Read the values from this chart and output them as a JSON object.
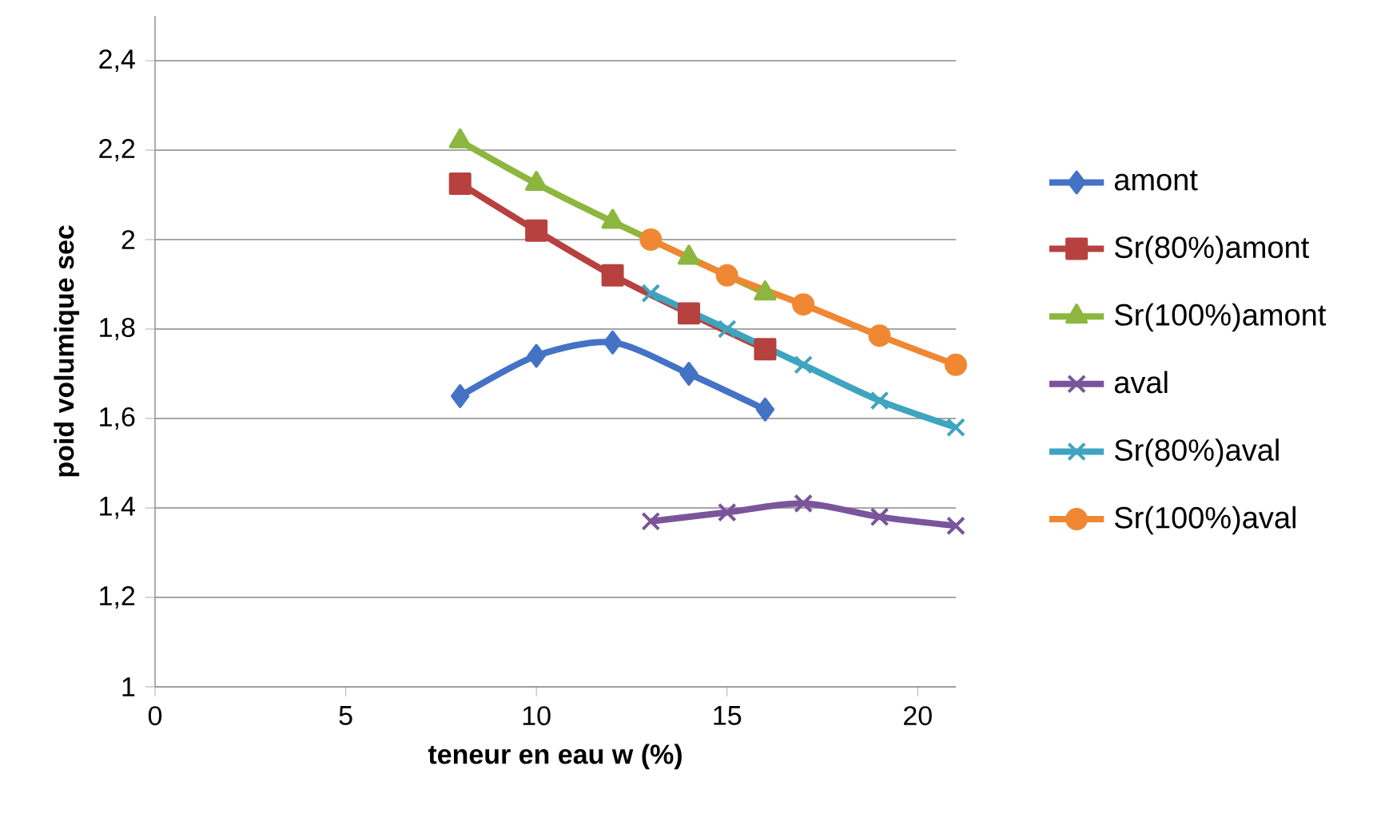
{
  "chart_data": {
    "type": "line",
    "xlabel": "teneur en eau w (%)",
    "ylabel": "poid volumique sec",
    "xlim": [
      0,
      21
    ],
    "xticks": [
      0,
      5,
      10,
      15,
      20
    ],
    "ylim": [
      1,
      2.5
    ],
    "yticks": [
      {
        "value": 1,
        "label": "1"
      },
      {
        "value": 1.2,
        "label": "1,2"
      },
      {
        "value": 1.4,
        "label": "1,4"
      },
      {
        "value": 1.6,
        "label": "1,6"
      },
      {
        "value": 1.8,
        "label": "1,8"
      },
      {
        "value": 2,
        "label": "2"
      },
      {
        "value": 2.2,
        "label": "2,2"
      },
      {
        "value": 2.4,
        "label": "2,4"
      }
    ],
    "grid": "y",
    "legend": "right",
    "series": [
      {
        "name": "amont",
        "color": "#4472c4",
        "marker": "diamond",
        "x": [
          8,
          10,
          12,
          14,
          16
        ],
        "values": [
          1.65,
          1.74,
          1.77,
          1.7,
          1.62
        ]
      },
      {
        "name": "Sr(80%)amont",
        "color": "#b6413f",
        "marker": "square",
        "x": [
          8,
          10,
          12,
          14,
          16
        ],
        "values": [
          2.125,
          2.02,
          1.92,
          1.835,
          1.755
        ]
      },
      {
        "name": "Sr(100%)amont",
        "color": "#8db63f",
        "marker": "triangle",
        "x": [
          8,
          10,
          12,
          14,
          16
        ],
        "values": [
          2.22,
          2.125,
          2.04,
          1.96,
          1.88
        ]
      },
      {
        "name": "aval",
        "color": "#7a559b",
        "marker": "cross",
        "x": [
          13,
          15,
          17,
          19,
          21
        ],
        "values": [
          1.37,
          1.39,
          1.41,
          1.38,
          1.36
        ]
      },
      {
        "name": "Sr(80%)aval",
        "color": "#3fa4bf",
        "marker": "cross",
        "x": [
          13,
          15,
          17,
          19,
          21
        ],
        "values": [
          1.88,
          1.8,
          1.72,
          1.64,
          1.58
        ]
      },
      {
        "name": "Sr(100%)aval",
        "color": "#ef8733",
        "marker": "circle",
        "x": [
          13,
          15,
          17,
          19,
          21
        ],
        "values": [
          2.0,
          1.92,
          1.855,
          1.785,
          1.72
        ]
      }
    ]
  }
}
